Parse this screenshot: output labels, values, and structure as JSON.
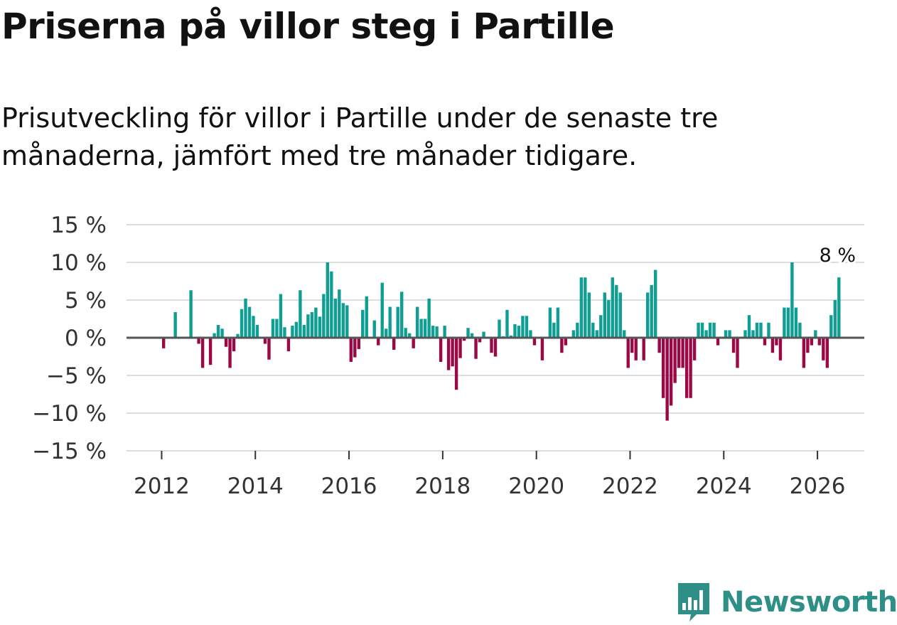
{
  "title": "Priserna på villor steg i Partille",
  "subtitle": "Prisutveckling för villor i Partille under de senaste tre månaderna, jämfört med tre månader tidigare.",
  "brand": "Newsworthy",
  "colors": {
    "positive": "#0f9e94",
    "negative": "#9c0845",
    "grid": "#dddddd",
    "zero": "#555555",
    "brand": "#2e8f86"
  },
  "chart_data": {
    "type": "bar",
    "title": "Priserna på villor steg i Partille",
    "xlabel": "",
    "ylabel": "",
    "ylim": [
      -15,
      15
    ],
    "yticks": [
      15,
      10,
      5,
      0,
      -5,
      -10,
      -15
    ],
    "ytick_labels": [
      "15 %",
      "10 %",
      "5 %",
      "0 %",
      "−5 %",
      "−10 %",
      "−15 %"
    ],
    "xlim": [
      2011.25,
      2027.0
    ],
    "xticks": [
      2012,
      2014,
      2016,
      2018,
      2020,
      2022,
      2024,
      2026
    ],
    "xtick_labels": [
      "2012",
      "2014",
      "2016",
      "2018",
      "2020",
      "2022",
      "2024",
      "2026"
    ],
    "start_year": 2011,
    "start_month": 6,
    "values": [
      0,
      0,
      0,
      0,
      0,
      0,
      0,
      -1.4,
      0,
      0,
      3.4,
      0,
      0,
      0,
      6.3,
      0,
      -0.8,
      -4,
      0,
      -3.6,
      0.6,
      1.7,
      1.2,
      -1.2,
      -4,
      -1.8,
      0.5,
      3.8,
      5.2,
      4.1,
      2.9,
      1.7,
      0,
      -0.8,
      -2.9,
      2.5,
      2.5,
      5.8,
      1.4,
      -1.8,
      1.6,
      2.1,
      6.3,
      1.7,
      3.1,
      3.4,
      4,
      2.8,
      5.8,
      10,
      8.8,
      5.2,
      6.4,
      4.6,
      4.3,
      -3.2,
      -2.6,
      -1.5,
      3.7,
      5.5,
      0,
      2.3,
      -1,
      7.3,
      1.2,
      4.1,
      -1.6,
      4.1,
      6.1,
      1.3,
      0.6,
      -1.4,
      4.1,
      2.5,
      2.5,
      5.2,
      1.6,
      1.5,
      -3.2,
      1.6,
      -4.3,
      -3.8,
      -6.9,
      -2.7,
      -0.4,
      1.3,
      0.6,
      -2.8,
      -0.6,
      0.8,
      0,
      -2,
      -2.5,
      2.4,
      0.2,
      3.7,
      0.3,
      1.8,
      1.6,
      2.9,
      2.9,
      1,
      -1,
      0,
      -3,
      0,
      4,
      2,
      4,
      -2,
      -1,
      0,
      1,
      2,
      8,
      8,
      6,
      2,
      1,
      3,
      6,
      5,
      8,
      7,
      6,
      1,
      -4,
      -2,
      -3,
      0,
      -3,
      6,
      7,
      9,
      -2,
      -8,
      -11,
      -9,
      -6,
      -4,
      -4,
      -8,
      -8,
      -3,
      2,
      2,
      1,
      2,
      2,
      -1,
      0,
      1,
      1,
      -2,
      -4,
      0,
      1,
      3,
      1,
      2,
      2,
      -1,
      2,
      -2,
      -1,
      -3,
      4,
      4,
      10,
      4,
      2,
      -4,
      -2,
      -1,
      1,
      -1,
      -3,
      -4,
      3,
      5,
      8
    ],
    "annotation": {
      "label": "8 %",
      "value": 8,
      "position": "last-bar"
    }
  }
}
